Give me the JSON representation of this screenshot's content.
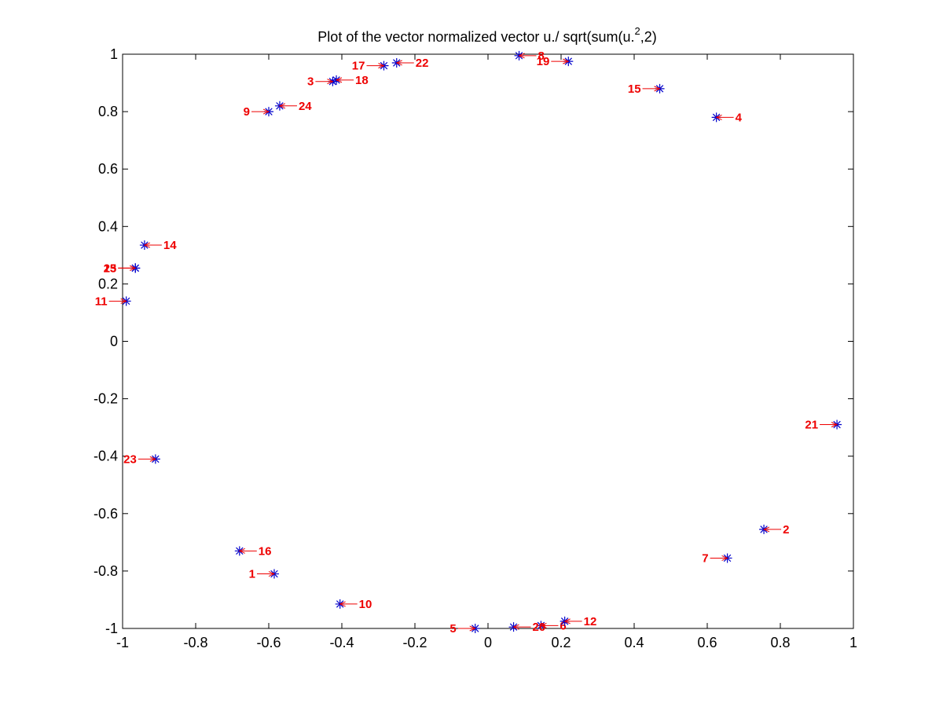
{
  "chart_data": {
    "type": "scatter",
    "title_main": "Plot of the vector normalized vector u./ sqrt(sum(u.",
    "title_sup": "2",
    "title_end": ",2)",
    "xlim": [
      -1,
      1
    ],
    "ylim": [
      -1,
      1
    ],
    "x_ticks": [
      -1,
      -0.8,
      -0.6,
      -0.4,
      -0.2,
      0,
      0.2,
      0.4,
      0.6,
      0.8,
      1
    ],
    "y_ticks": [
      -1,
      -0.8,
      -0.6,
      -0.4,
      -0.2,
      0,
      0.2,
      0.4,
      0.6,
      0.8,
      1
    ],
    "x_tick_labels": [
      "-1",
      "-0.8",
      "-0.6",
      "-0.4",
      "-0.2",
      "0",
      "0.2",
      "0.4",
      "0.6",
      "0.8",
      "1"
    ],
    "y_tick_labels": [
      "-1",
      "-0.8",
      "-0.6",
      "-0.4",
      "-0.2",
      "0",
      "0.2",
      "0.4",
      "0.6",
      "0.8",
      "1"
    ],
    "grid": false,
    "marker": "*",
    "marker_color": "#0000cc",
    "label_color": "#ee0000",
    "points": [
      {
        "label": "1",
        "x": -0.585,
        "y": -0.81,
        "side": "left"
      },
      {
        "label": "2",
        "x": 0.755,
        "y": -0.655,
        "side": "right"
      },
      {
        "label": "3",
        "x": -0.425,
        "y": 0.905,
        "side": "left"
      },
      {
        "label": "4",
        "x": 0.625,
        "y": 0.78,
        "side": "right"
      },
      {
        "label": "5",
        "x": -0.035,
        "y": -1.0,
        "side": "left"
      },
      {
        "label": "6",
        "x": 0.145,
        "y": -0.99,
        "side": "right"
      },
      {
        "label": "7",
        "x": 0.655,
        "y": -0.755,
        "side": "left"
      },
      {
        "label": "8",
        "x": 0.085,
        "y": 0.995,
        "side": "right"
      },
      {
        "label": "9",
        "x": -0.6,
        "y": 0.8,
        "side": "left"
      },
      {
        "label": "10",
        "x": -0.405,
        "y": -0.915,
        "side": "right"
      },
      {
        "label": "11",
        "x": -0.99,
        "y": 0.14,
        "side": "left"
      },
      {
        "label": "12",
        "x": 0.21,
        "y": -0.975,
        "side": "right"
      },
      {
        "label": "13",
        "x": -0.965,
        "y": 0.255,
        "side": "left"
      },
      {
        "label": "14",
        "x": -0.94,
        "y": 0.335,
        "side": "right"
      },
      {
        "label": "15",
        "x": 0.47,
        "y": 0.88,
        "side": "left"
      },
      {
        "label": "16",
        "x": -0.68,
        "y": -0.73,
        "side": "right"
      },
      {
        "label": "17",
        "x": -0.285,
        "y": 0.96,
        "side": "left"
      },
      {
        "label": "18",
        "x": -0.415,
        "y": 0.91,
        "side": "right"
      },
      {
        "label": "19",
        "x": 0.22,
        "y": 0.975,
        "side": "left"
      },
      {
        "label": "20",
        "x": 0.07,
        "y": -0.995,
        "side": "right"
      },
      {
        "label": "21",
        "x": 0.955,
        "y": -0.29,
        "side": "left"
      },
      {
        "label": "22",
        "x": -0.25,
        "y": 0.97,
        "side": "right"
      },
      {
        "label": "23",
        "x": -0.91,
        "y": -0.41,
        "side": "left"
      },
      {
        "label": "24",
        "x": -0.57,
        "y": 0.82,
        "side": "right"
      },
      {
        "label": "25",
        "x": -0.965,
        "y": 0.255,
        "side": "left"
      }
    ]
  }
}
